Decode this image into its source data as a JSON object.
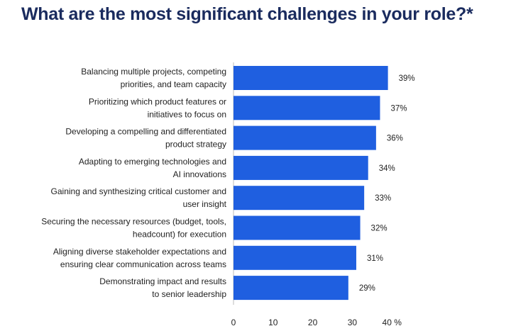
{
  "chart_data": {
    "type": "bar",
    "orientation": "horizontal",
    "title": "What are the most significant challenges in your role?*",
    "categories": [
      [
        "Balancing multiple projects, competing",
        "priorities, and team capacity"
      ],
      [
        "Prioritizing which product features or",
        "initiatives to focus on"
      ],
      [
        "Developing a compelling and differentiated",
        "product strategy"
      ],
      [
        "Adapting to emerging technologies and",
        "AI innovations"
      ],
      [
        "Gaining and synthesizing critical customer and",
        "user insight"
      ],
      [
        "Securing the necessary resources (budget, tools,",
        "headcount) for execution"
      ],
      [
        "Aligning diverse stakeholder expectations and",
        "ensuring clear communication across teams"
      ],
      [
        "Demonstrating impact and results",
        "to senior leadership"
      ]
    ],
    "values": [
      39,
      37,
      36,
      34,
      33,
      32,
      31,
      29
    ],
    "value_labels": [
      "39%",
      "37%",
      "36%",
      "34%",
      "33%",
      "32%",
      "31%",
      "29%"
    ],
    "xlim": [
      0,
      42
    ],
    "ticks": [
      0,
      10,
      20,
      30,
      40
    ],
    "tick_labels": [
      "0",
      "10",
      "20",
      "30",
      "40 %"
    ],
    "bar_color": "#1f5fe0",
    "grid": false
  }
}
